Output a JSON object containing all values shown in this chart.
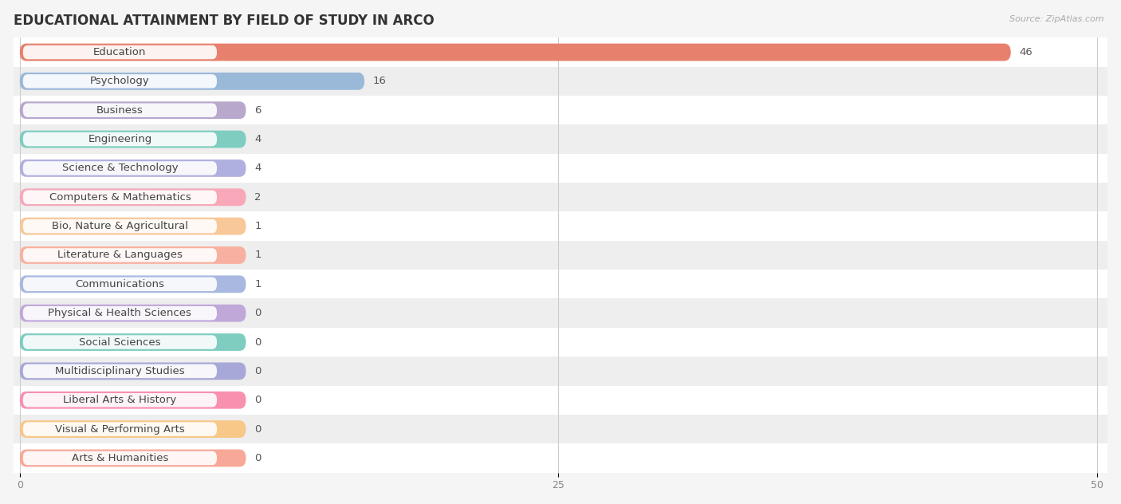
{
  "title": "EDUCATIONAL ATTAINMENT BY FIELD OF STUDY IN ARCO",
  "source": "Source: ZipAtlas.com",
  "categories": [
    "Education",
    "Psychology",
    "Business",
    "Engineering",
    "Science & Technology",
    "Computers & Mathematics",
    "Bio, Nature & Agricultural",
    "Literature & Languages",
    "Communications",
    "Physical & Health Sciences",
    "Social Sciences",
    "Multidisciplinary Studies",
    "Liberal Arts & History",
    "Visual & Performing Arts",
    "Arts & Humanities"
  ],
  "values": [
    46,
    16,
    6,
    4,
    4,
    2,
    1,
    1,
    1,
    0,
    0,
    0,
    0,
    0,
    0
  ],
  "bar_colors": [
    "#e8806e",
    "#9ab8d8",
    "#b8a8cc",
    "#7ecdc0",
    "#b0b0e0",
    "#f8a8b8",
    "#f8c898",
    "#f8b0a0",
    "#a8b8e0",
    "#c0a8d8",
    "#7ecdc0",
    "#a8a8d8",
    "#f890b0",
    "#f8c888",
    "#f8a898"
  ],
  "min_bar_width": 10.5,
  "xlim": [
    0,
    50
  ],
  "xticks": [
    0,
    25,
    50
  ],
  "background_color": "#f5f5f5",
  "row_bg_light": "#ffffff",
  "row_bg_dark": "#eeeeee",
  "title_fontsize": 12,
  "label_fontsize": 9.5,
  "value_fontsize": 9.5,
  "bar_height": 0.6
}
